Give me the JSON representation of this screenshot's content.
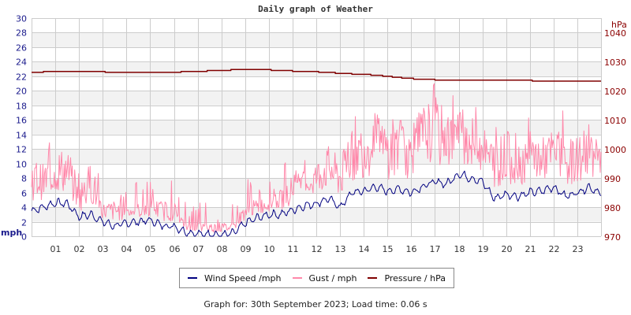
{
  "title": "Daily graph of Weather",
  "footer": "Graph for: 30th September 2023; Load time: 0.06 s",
  "legend": [
    {
      "label": "Wind Speed /mph",
      "color": "#000080"
    },
    {
      "label": "Gust / mph",
      "color": "#ff88aa"
    },
    {
      "label": "Pressure / hPa",
      "color": "#800000"
    }
  ],
  "colors": {
    "left_axis": "#1a1a8c",
    "right_axis": "#8b0000",
    "grid": "#cccccc",
    "band": "#f2f2f2",
    "x_axis_text": "#333333"
  },
  "chart_data": {
    "type": "line",
    "title": "Daily graph of Weather",
    "xlabel": "",
    "ylabel": "mph",
    "y2label": "hPa",
    "xlim": [
      0,
      24
    ],
    "ylim": [
      0,
      30
    ],
    "y2lim": [
      970,
      1045
    ],
    "x_ticks": [
      "01",
      "02",
      "03",
      "04",
      "05",
      "06",
      "07",
      "08",
      "09",
      "10",
      "11",
      "12",
      "13",
      "14",
      "15",
      "16",
      "17",
      "18",
      "19",
      "20",
      "21",
      "22",
      "23"
    ],
    "y_ticks": [
      0,
      2,
      4,
      6,
      8,
      10,
      12,
      14,
      16,
      18,
      20,
      22,
      24,
      26,
      28,
      30
    ],
    "y2_ticks": [
      970,
      980,
      990,
      1000,
      1010,
      1020,
      1030,
      1040
    ],
    "grid": true,
    "legend_position": "bottom",
    "x": [
      0,
      0.5,
      1,
      1.5,
      2,
      2.5,
      3,
      3.5,
      4,
      4.5,
      5,
      5.5,
      6,
      6.5,
      7,
      7.5,
      8,
      8.5,
      9,
      9.5,
      10,
      10.5,
      11,
      11.5,
      12,
      12.5,
      13,
      13.5,
      14,
      14.5,
      15,
      15.5,
      16,
      16.5,
      17,
      17.5,
      18,
      18.5,
      19,
      19.5,
      20,
      20.5,
      21,
      21.5,
      22,
      22.5,
      23,
      23.5,
      24
    ],
    "series": [
      {
        "name": "Wind Speed /mph",
        "axis": "left",
        "color": "#000080",
        "values": [
          3.5,
          4.0,
          4.6,
          4.5,
          2.7,
          3.0,
          2.0,
          1.4,
          1.8,
          2.0,
          2.2,
          1.5,
          1.4,
          0.6,
          0.3,
          0.3,
          0.2,
          0.4,
          1.8,
          2.5,
          3.0,
          3.0,
          3.6,
          4.2,
          4.5,
          5.2,
          4.0,
          6.0,
          6.2,
          6.8,
          6.2,
          6.5,
          6.0,
          6.9,
          7.5,
          7.2,
          8.6,
          8.0,
          7.5,
          5.2,
          5.8,
          5.5,
          6.0,
          6.2,
          6.8,
          5.5,
          6.0,
          6.8,
          5.8
        ]
      },
      {
        "name": "Gust / mph",
        "axis": "left",
        "color": "#ff88aa",
        "values": [
          8.0,
          7.5,
          9.0,
          9.0,
          5.0,
          7.5,
          3.5,
          3.5,
          3.5,
          3.5,
          4.0,
          3.5,
          3.5,
          1.2,
          1.2,
          1.2,
          1.2,
          1.2,
          3.5,
          4.0,
          4.5,
          5.0,
          6.5,
          7.0,
          8.0,
          9.5,
          8.0,
          11.0,
          12.0,
          13.0,
          11.5,
          12.5,
          11.0,
          13.5,
          14.5,
          13.0,
          14.0,
          13.0,
          12.0,
          10.0,
          11.0,
          10.0,
          11.0,
          10.5,
          11.5,
          10.0,
          10.5,
          12.0,
          9.5
        ]
      },
      {
        "name": "Pressure / hPa",
        "axis": "right",
        "color": "#800000",
        "values": [
          1026.3,
          1026.5,
          1026.6,
          1026.6,
          1026.6,
          1026.5,
          1026.5,
          1026.2,
          1026.4,
          1026.3,
          1026.3,
          1026.2,
          1026.4,
          1026.6,
          1026.7,
          1026.9,
          1027.1,
          1027.2,
          1027.3,
          1027.3,
          1027.2,
          1027.0,
          1026.8,
          1026.6,
          1026.5,
          1026.3,
          1026.0,
          1025.8,
          1025.6,
          1025.4,
          1025.0,
          1024.5,
          1024.2,
          1024.0,
          1023.8,
          1023.6,
          1023.6,
          1023.6,
          1023.7,
          1023.5,
          1023.6,
          1023.6,
          1023.5,
          1023.4,
          1023.4,
          1023.2,
          1023.2,
          1023.2,
          1023.2
        ]
      }
    ]
  }
}
